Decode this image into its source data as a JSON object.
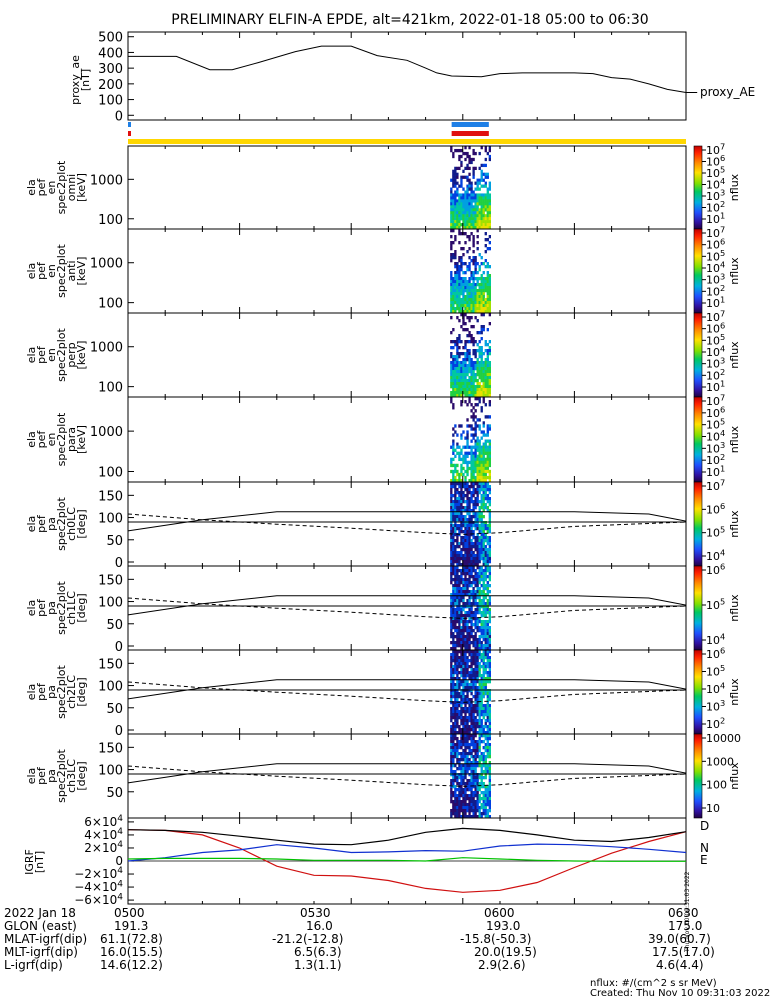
{
  "title": "PRELIMINARY ELFIN-A EPDE, alt=421km, 2022-01-18 05:00 to 06:30",
  "chart_data": [
    {
      "type": "line",
      "ylabel": [
        "proxy_ae",
        "[nT]"
      ],
      "legend": "proxy_AE",
      "ylim": [
        0,
        500
      ],
      "yticks": [
        "500",
        "400",
        "300",
        "200",
        "100",
        "0"
      ],
      "series": [
        {
          "name": "proxy_AE",
          "x_min": [
            0,
            13,
            22,
            28,
            35,
            45,
            52,
            60,
            67,
            75,
            80,
            83,
            87,
            95,
            100,
            106,
            113,
            120,
            125,
            130,
            135,
            140,
            145,
            150,
            153
          ],
          "values": [
            375,
            375,
            290,
            290,
            335,
            405,
            440,
            440,
            380,
            350,
            300,
            270,
            250,
            245,
            265,
            270,
            270,
            270,
            265,
            240,
            230,
            200,
            165,
            145,
            145
          ]
        }
      ]
    },
    {
      "type": "bar",
      "name": "status-bars",
      "blue_segment_min": [
        [
          0,
          0.5
        ],
        [
          87,
          97
        ]
      ],
      "red_segment_min": [
        [
          0,
          0.5
        ],
        [
          87,
          97
        ]
      ],
      "yellow_segment_min": [
        [
          0,
          150
        ]
      ]
    },
    {
      "type": "heatmap",
      "panels": [
        {
          "ylabel": [
            "ela",
            "pef",
            "en",
            "spec2plot",
            "omni",
            "[keV]"
          ],
          "yticks": [
            "1000",
            "100"
          ],
          "cbar_ticks": [
            "10^7",
            "10^6",
            "10^5",
            "10^4",
            "10^3",
            "10^2",
            "10^1"
          ],
          "cbar_label": "nflux"
        },
        {
          "ylabel": [
            "ela",
            "pef",
            "en",
            "spec2plot",
            "anti",
            "[keV]"
          ],
          "yticks": [
            "1000",
            "100"
          ],
          "cbar_ticks": [
            "10^7",
            "10^6",
            "10^5",
            "10^4",
            "10^3",
            "10^2",
            "10^1"
          ],
          "cbar_label": "nflux"
        },
        {
          "ylabel": [
            "ela",
            "pef",
            "en",
            "spec2plot",
            "perp",
            "[keV]"
          ],
          "yticks": [
            "1000",
            "100"
          ],
          "cbar_ticks": [
            "10^7",
            "10^6",
            "10^5",
            "10^4",
            "10^3",
            "10^2",
            "10^1"
          ],
          "cbar_label": "nflux"
        },
        {
          "ylabel": [
            "ela",
            "pef",
            "en",
            "spec2plot",
            "para",
            "[keV]"
          ],
          "yticks": [
            "1000",
            "100"
          ],
          "cbar_ticks": [
            "10^7",
            "10^6",
            "10^5",
            "10^4",
            "10^3",
            "10^2",
            "10^1"
          ],
          "cbar_label": "nflux"
        },
        {
          "ylabel": [
            "ela",
            "pef",
            "pa",
            "spec2plot",
            "ch0LC",
            "[deg]"
          ],
          "yticks": [
            "150",
            "100",
            "50",
            "0"
          ],
          "cbar_ticks": [
            "10^7",
            "10^6",
            "10^5",
            "10^4"
          ],
          "cbar_label": "nflux"
        },
        {
          "ylabel": [
            "ela",
            "pef",
            "pa",
            "spec2plot",
            "ch1LC",
            "[deg]"
          ],
          "yticks": [
            "150",
            "100",
            "50",
            "0"
          ],
          "cbar_ticks": [
            "10^6",
            "10^5",
            "10^4"
          ],
          "cbar_label": "nflux"
        },
        {
          "ylabel": [
            "ela",
            "pef",
            "pa",
            "spec2plot",
            "ch2LC",
            "[deg]"
          ],
          "yticks": [
            "150",
            "100",
            "50",
            "0"
          ],
          "cbar_ticks": [
            "10^6",
            "10^5",
            "10^4",
            "10^3",
            "10^2"
          ],
          "cbar_label": "nflux"
        },
        {
          "ylabel": [
            "ela",
            "pef",
            "pa",
            "spec2plot",
            "ch3LC",
            "[deg]"
          ],
          "yticks": [
            "150",
            "100",
            "50"
          ],
          "cbar_ticks": [
            "10000",
            "1000",
            "100",
            "10"
          ],
          "cbar_label": "nflux"
        }
      ],
      "data_window_min": [
        86,
        98
      ]
    },
    {
      "type": "line",
      "ylabel": [
        "IGRF",
        "[nT]"
      ],
      "ylim": [
        -60000,
        60000
      ],
      "yticks": [
        "6×10^4",
        "4×10^4",
        "2×10^4",
        "0",
        "−2×10^4",
        "−4×10^4",
        "−6×10^4"
      ],
      "legend": [
        "D",
        "N",
        "E"
      ],
      "series": [
        {
          "name": "D",
          "x_min": [
            0,
            10,
            20,
            30,
            40,
            50,
            60,
            70,
            80,
            90,
            100,
            110,
            120,
            130,
            140,
            150
          ],
          "values": [
            48000,
            47000,
            40000,
            20000,
            -8000,
            -22000,
            -23000,
            -30000,
            -42000,
            -48000,
            -45000,
            -33000,
            -10000,
            12000,
            30000,
            45000
          ]
        },
        {
          "name": "N",
          "x_min": [
            0,
            10,
            20,
            30,
            40,
            50,
            60,
            70,
            80,
            90,
            100,
            110,
            120,
            130,
            140,
            150
          ],
          "values": [
            0,
            5000,
            13000,
            17000,
            25000,
            20000,
            13000,
            14000,
            16000,
            15000,
            23000,
            26000,
            25000,
            22000,
            18000,
            13000
          ]
        },
        {
          "name": "E",
          "x_min": [
            0,
            10,
            20,
            30,
            40,
            50,
            60,
            70,
            80,
            90,
            100,
            110,
            120,
            130,
            140,
            150
          ],
          "values": [
            3000,
            4000,
            4000,
            4000,
            3000,
            1000,
            1000,
            1000,
            0,
            5000,
            3000,
            1000,
            0,
            -500,
            -500,
            -500
          ]
        },
        {
          "name": "total",
          "x_min": [
            0,
            10,
            20,
            30,
            40,
            50,
            60,
            70,
            80,
            90,
            100,
            110,
            120,
            130,
            140,
            150
          ],
          "values": [
            48000,
            47000,
            44000,
            38000,
            32000,
            26000,
            25000,
            32000,
            44000,
            50000,
            47000,
            40000,
            32000,
            30000,
            36000,
            45000
          ]
        }
      ],
      "xticks": [
        "0500",
        "0530",
        "0600",
        "0630"
      ],
      "xlim_min": [
        0,
        150
      ]
    }
  ],
  "bottom": {
    "rows": [
      [
        "2022 Jan 18",
        "0500",
        "0530",
        "0600",
        "0630"
      ],
      [
        "GLON (east)",
        "191.3",
        "16.0",
        "193.0",
        "175.0"
      ],
      [
        "MLAT-igrf(dip)",
        "61.1(72.8)",
        "-21.2(-12.8)",
        "-15.8(-50.3)",
        "39.0(60.7)"
      ],
      [
        "MLT-igrf(dip)",
        "16.0(15.5)",
        "6.5(6.3)",
        "20.0(19.5)",
        "17.5(17.0)"
      ],
      [
        "L-igrf(dip)",
        "14.6(12.2)",
        "1.3(1.1)",
        "2.9(2.6)",
        "4.6(4.4)"
      ]
    ],
    "footer1": "nflux: #/(cm^2 s sr MeV)",
    "footer2": "Created: Thu Nov 10 09:31:03 2022",
    "side_stamp": "Thu Nov 10 09:31:03 2022"
  },
  "colors": {
    "blue": "#1e7fe6",
    "red": "#e01010",
    "yellow": "#ffd700",
    "line_D": "#d01010",
    "line_N": "#1030d0",
    "line_E": "#00c000"
  }
}
